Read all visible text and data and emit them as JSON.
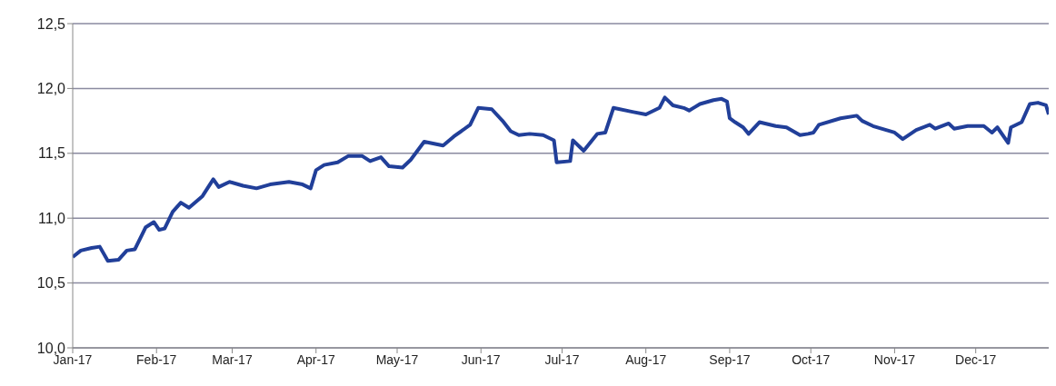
{
  "chart_data": {
    "type": "line",
    "x": [
      "2017-01-01",
      "2017-01-04",
      "2017-01-08",
      "2017-01-11",
      "2017-01-14",
      "2017-01-18",
      "2017-01-21",
      "2017-01-24",
      "2017-01-28",
      "2017-01-31",
      "2017-02-02",
      "2017-02-04",
      "2017-02-07",
      "2017-02-10",
      "2017-02-13",
      "2017-02-18",
      "2017-02-22",
      "2017-02-24",
      "2017-02-28",
      "2017-03-05",
      "2017-03-10",
      "2017-03-15",
      "2017-03-22",
      "2017-03-27",
      "2017-03-30",
      "2017-04-01",
      "2017-04-04",
      "2017-04-09",
      "2017-04-13",
      "2017-04-18",
      "2017-04-21",
      "2017-04-25",
      "2017-04-28",
      "2017-05-03",
      "2017-05-06",
      "2017-05-11",
      "2017-05-18",
      "2017-05-22",
      "2017-05-28",
      "2017-05-31",
      "2017-06-05",
      "2017-06-09",
      "2017-06-12",
      "2017-06-15",
      "2017-06-19",
      "2017-06-24",
      "2017-06-28",
      "2017-06-29",
      "2017-07-04",
      "2017-07-05",
      "2017-07-09",
      "2017-07-14",
      "2017-07-17",
      "2017-07-20",
      "2017-07-27",
      "2017-08-01",
      "2017-08-06",
      "2017-08-08",
      "2017-08-11",
      "2017-08-15",
      "2017-08-17",
      "2017-08-21",
      "2017-08-26",
      "2017-08-29",
      "2017-08-31",
      "2017-09-01",
      "2017-09-03",
      "2017-09-06",
      "2017-09-08",
      "2017-09-12",
      "2017-09-18",
      "2017-09-22",
      "2017-09-27",
      "2017-09-30",
      "2017-10-02",
      "2017-10-04",
      "2017-10-12",
      "2017-10-18",
      "2017-10-20",
      "2017-10-24",
      "2017-11-01",
      "2017-11-04",
      "2017-11-09",
      "2017-11-14",
      "2017-11-16",
      "2017-11-21",
      "2017-11-23",
      "2017-11-28",
      "2017-12-04",
      "2017-12-07",
      "2017-12-09",
      "2017-12-13",
      "2017-12-14",
      "2017-12-18",
      "2017-12-21",
      "2017-12-24",
      "2017-12-27",
      "2017-12-28"
    ],
    "series": [
      {
        "color": "#213f99",
        "values": [
          10.7,
          10.75,
          10.77,
          10.78,
          10.67,
          10.68,
          10.75,
          10.76,
          10.93,
          10.97,
          10.91,
          10.92,
          11.05,
          11.12,
          11.08,
          11.17,
          11.3,
          11.24,
          11.28,
          11.25,
          11.23,
          11.26,
          11.28,
          11.26,
          11.23,
          11.37,
          11.41,
          11.43,
          11.48,
          11.48,
          11.44,
          11.47,
          11.4,
          11.39,
          11.45,
          11.59,
          11.56,
          11.63,
          11.72,
          11.85,
          11.84,
          11.75,
          11.67,
          11.64,
          11.65,
          11.64,
          11.6,
          11.43,
          11.44,
          11.6,
          11.52,
          11.65,
          11.66,
          11.85,
          11.82,
          11.8,
          11.85,
          11.93,
          11.87,
          11.85,
          11.83,
          11.88,
          11.91,
          11.92,
          11.9,
          11.77,
          11.74,
          11.7,
          11.65,
          11.74,
          11.71,
          11.7,
          11.64,
          11.65,
          11.66,
          11.72,
          11.77,
          11.79,
          11.75,
          11.71,
          11.66,
          11.61,
          11.68,
          11.72,
          11.69,
          11.73,
          11.69,
          11.71,
          11.71,
          11.66,
          11.7,
          11.58,
          11.7,
          11.74,
          11.88,
          11.89,
          11.87,
          11.8
        ]
      }
    ],
    "xlim": [
      "2017-01-01",
      "2017-12-28"
    ],
    "xticks": [
      {
        "value": "2017-01-01",
        "label": "Jan-17"
      },
      {
        "value": "2017-02-01",
        "label": "Feb-17"
      },
      {
        "value": "2017-03-01",
        "label": "Mar-17"
      },
      {
        "value": "2017-04-01",
        "label": "Apr-17"
      },
      {
        "value": "2017-05-01",
        "label": "May-17"
      },
      {
        "value": "2017-06-01",
        "label": "Jun-17"
      },
      {
        "value": "2017-07-01",
        "label": "Jul-17"
      },
      {
        "value": "2017-08-01",
        "label": "Aug-17"
      },
      {
        "value": "2017-09-01",
        "label": "Sep-17"
      },
      {
        "value": "2017-10-01",
        "label": "Oct-17"
      },
      {
        "value": "2017-11-01",
        "label": "Nov-17"
      },
      {
        "value": "2017-12-01",
        "label": "Dec-17"
      }
    ],
    "ylim": [
      10.0,
      12.5
    ],
    "yticks": [
      {
        "value": 10.0,
        "label": "10,0"
      },
      {
        "value": 10.5,
        "label": "10,5"
      },
      {
        "value": 11.0,
        "label": "11,0"
      },
      {
        "value": 11.5,
        "label": "11,5"
      },
      {
        "value": 12.0,
        "label": "12,0"
      },
      {
        "value": 12.5,
        "label": "12,5"
      }
    ],
    "grid": "y",
    "legend": false,
    "marker": "none",
    "line_style": "solid"
  }
}
